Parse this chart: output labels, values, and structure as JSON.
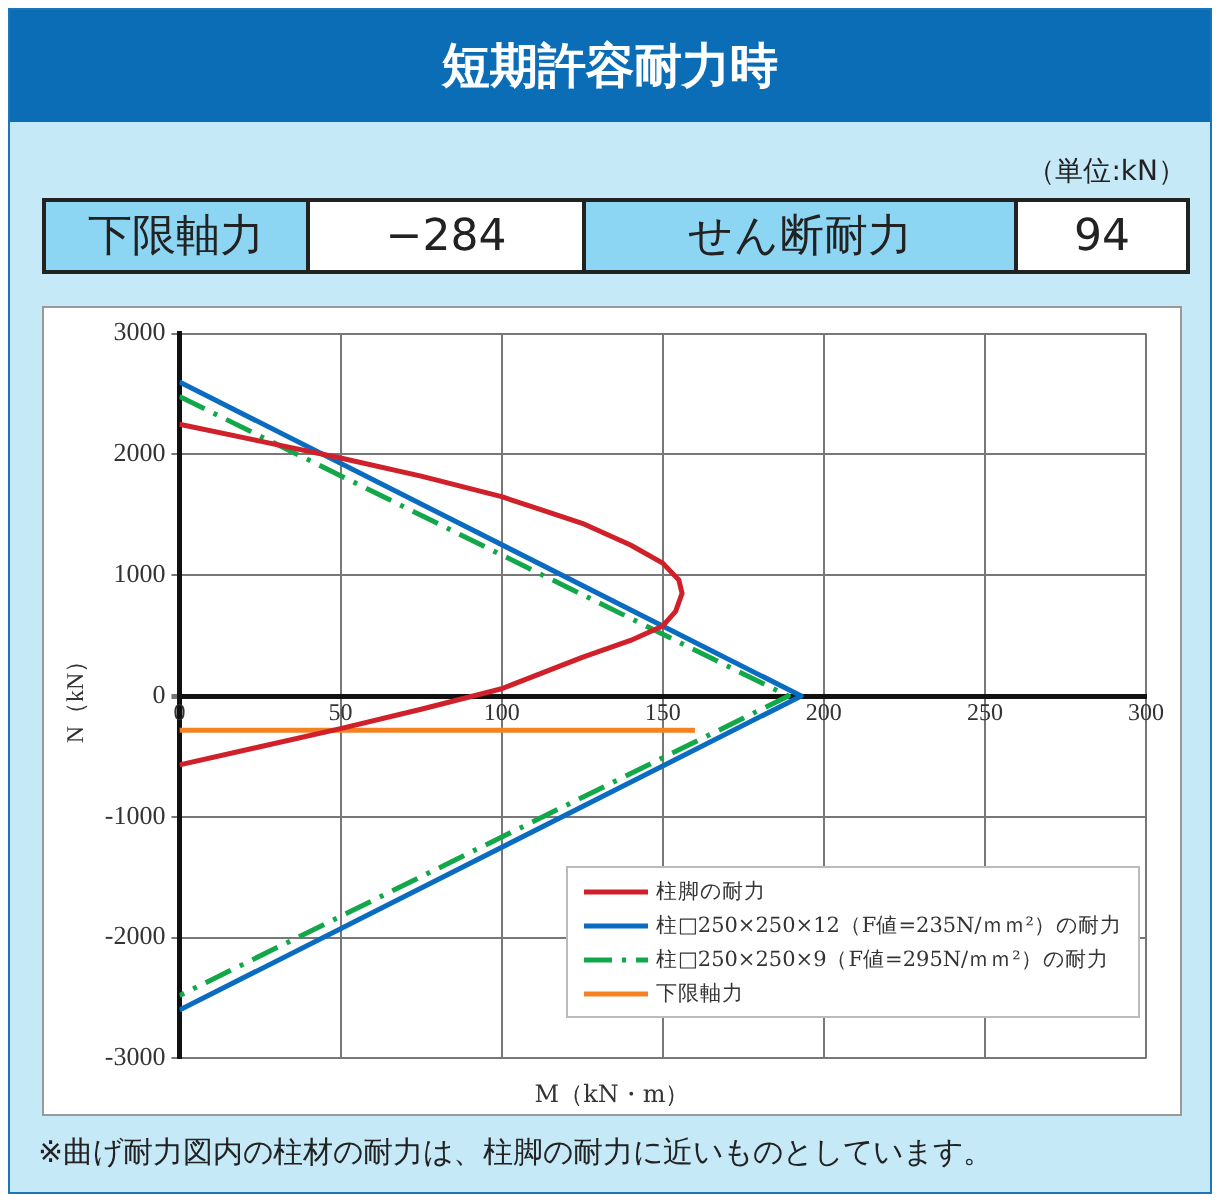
{
  "chart_data": {
    "type": "line",
    "title": "短期許容耐力時",
    "xlabel": "M（kN・m）",
    "ylabel": "N（kN）",
    "annotations": [
      "（単位:kN）",
      "下限軸力",
      "−284",
      "せん断耐力",
      "94",
      "※曲げ耐力図内の柱材の耐力は、柱脚の耐力に近いものとしています。"
    ],
    "series": [
      {
        "name": "柱脚の耐力",
        "color": "#d0202a",
        "x": [
          0,
          25,
          50,
          75,
          100,
          125,
          140,
          150,
          155,
          156,
          154,
          150,
          140,
          125,
          100,
          75,
          50,
          25,
          0
        ],
        "values": [
          2250,
          2110,
          1970,
          1820,
          1650,
          1430,
          1250,
          1100,
          960,
          850,
          700,
          580,
          460,
          320,
          60,
          -110,
          -270,
          -420,
          -570
        ]
      },
      {
        "name": "柱□250×250×12（F値=235N/ｍｍ²）の耐力",
        "color": "#0a6cc0",
        "x": [
          0,
          193,
          0
        ],
        "values": [
          2600,
          0,
          -2600
        ]
      },
      {
        "name": "柱□250×250×9（F値=295N/ｍｍ²）の耐力",
        "color": "#12a84a",
        "line_style": "dashed",
        "x": [
          0,
          189,
          0
        ],
        "values": [
          2480,
          0,
          -2480
        ]
      },
      {
        "name": "下限軸力",
        "color": "#f58220",
        "x": [
          0,
          160
        ],
        "values": [
          -284,
          -284
        ]
      }
    ],
    "xlim": [
      0,
      300
    ],
    "xticks": [
      0,
      50,
      100,
      150,
      200,
      250,
      300
    ],
    "ylim": [
      -3000,
      3000
    ],
    "yticks": [
      -3000,
      -2000,
      -1000,
      0,
      1000,
      2000,
      3000
    ],
    "grid": true,
    "legend": "bottom right"
  }
}
